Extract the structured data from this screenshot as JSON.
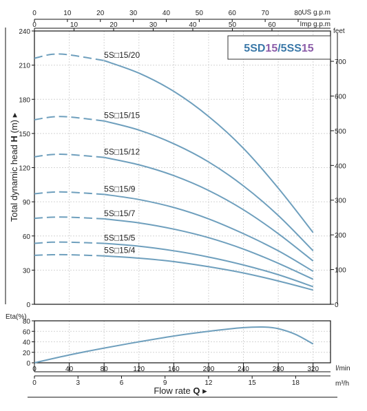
{
  "chart_data": {
    "type": "line",
    "title": {
      "part1": "5SD",
      "part2": "15",
      "part3": "/5SS",
      "part4": "15",
      "color_dark": "#3a78a8",
      "color_accent": "#8b5ca8"
    },
    "head_chart": {
      "x_axis": {
        "label": "Flow rate",
        "symbol": "Q",
        "units": [
          "l/min",
          "m³/h"
        ],
        "lpm_ticks": [
          0,
          40,
          80,
          120,
          160,
          200,
          240,
          280,
          320
        ],
        "lpm_range": [
          0,
          340
        ],
        "m3h_ticks": [
          0,
          3,
          6,
          9,
          12,
          15,
          18
        ]
      },
      "top_axes": {
        "us_gpm": {
          "label": "US g.p.m",
          "ticks": [
            0,
            10,
            20,
            30,
            40,
            50,
            60,
            70,
            80
          ]
        },
        "imp_gpm": {
          "label": "Imp g.p.m",
          "ticks": [
            0,
            10,
            20,
            30,
            40,
            50,
            60
          ]
        }
      },
      "y_left": {
        "label": "Total dynamic head",
        "symbol": "H",
        "unit": "(m)",
        "range": [
          0,
          240
        ],
        "ticks": [
          0,
          30,
          60,
          90,
          120,
          150,
          180,
          210,
          240
        ]
      },
      "y_right": {
        "label": "feet",
        "ticks": [
          0,
          100,
          200,
          300,
          400,
          500,
          600,
          700
        ]
      },
      "series": [
        {
          "name": "5S□15/20",
          "dashed_until": 80,
          "points": [
            [
              0,
              216
            ],
            [
              20,
              219.5
            ],
            [
              40,
              219
            ],
            [
              80,
              214
            ],
            [
              120,
              203
            ],
            [
              160,
              187
            ],
            [
              200,
              165
            ],
            [
              240,
              137
            ],
            [
              280,
              102
            ],
            [
              320,
              63
            ]
          ]
        },
        {
          "name": "5S□15/15",
          "dashed_until": 80,
          "points": [
            [
              0,
              162
            ],
            [
              20,
              164.5
            ],
            [
              40,
              164.5
            ],
            [
              80,
              161
            ],
            [
              120,
              153
            ],
            [
              160,
              141
            ],
            [
              200,
              125
            ],
            [
              240,
              104
            ],
            [
              280,
              78
            ],
            [
              320,
              47
            ]
          ]
        },
        {
          "name": "5S□15/12",
          "dashed_until": 80,
          "points": [
            [
              0,
              129.5
            ],
            [
              20,
              131.5
            ],
            [
              40,
              131.5
            ],
            [
              80,
              129
            ],
            [
              120,
              122.5
            ],
            [
              160,
              113
            ],
            [
              200,
              100
            ],
            [
              240,
              83
            ],
            [
              280,
              62
            ],
            [
              320,
              38
            ]
          ]
        },
        {
          "name": "5S□15/9",
          "dashed_until": 80,
          "points": [
            [
              0,
              97
            ],
            [
              20,
              98.5
            ],
            [
              40,
              98.5
            ],
            [
              80,
              96.5
            ],
            [
              120,
              92
            ],
            [
              160,
              85
            ],
            [
              200,
              75
            ],
            [
              240,
              62
            ],
            [
              280,
              47
            ],
            [
              320,
              29
            ]
          ]
        },
        {
          "name": "5S□15/7",
          "dashed_until": 80,
          "points": [
            [
              0,
              75.5
            ],
            [
              20,
              76.5
            ],
            [
              40,
              76.5
            ],
            [
              80,
              75
            ],
            [
              120,
              71.5
            ],
            [
              160,
              66
            ],
            [
              200,
              58.5
            ],
            [
              240,
              48.5
            ],
            [
              280,
              36
            ],
            [
              320,
              22
            ]
          ]
        },
        {
          "name": "5S□15/5",
          "dashed_until": 80,
          "points": [
            [
              0,
              53.5
            ],
            [
              20,
              54.5
            ],
            [
              40,
              54.5
            ],
            [
              80,
              53.5
            ],
            [
              120,
              51
            ],
            [
              160,
              47
            ],
            [
              200,
              41.5
            ],
            [
              240,
              34.5
            ],
            [
              280,
              26
            ],
            [
              320,
              15.5
            ]
          ]
        },
        {
          "name": "5S□15/4",
          "dashed_until": 80,
          "points": [
            [
              0,
              43
            ],
            [
              20,
              43.5
            ],
            [
              40,
              43.5
            ],
            [
              80,
              42.5
            ],
            [
              120,
              40.5
            ],
            [
              160,
              37.5
            ],
            [
              200,
              33
            ],
            [
              240,
              27.5
            ],
            [
              280,
              20.5
            ],
            [
              320,
              12.5
            ]
          ]
        }
      ]
    },
    "efficiency_chart": {
      "y_axis": {
        "label": "Eta(%)",
        "range": [
          0,
          80
        ],
        "ticks": [
          0,
          20,
          40,
          60,
          80
        ]
      },
      "series": [
        {
          "name": "",
          "points": [
            [
              0,
              0
            ],
            [
              40,
              15
            ],
            [
              80,
              28
            ],
            [
              120,
              40
            ],
            [
              160,
              51
            ],
            [
              200,
              60
            ],
            [
              240,
              67
            ],
            [
              265,
              68
            ],
            [
              280,
              65
            ],
            [
              300,
              54
            ],
            [
              320,
              36
            ]
          ]
        }
      ]
    }
  }
}
